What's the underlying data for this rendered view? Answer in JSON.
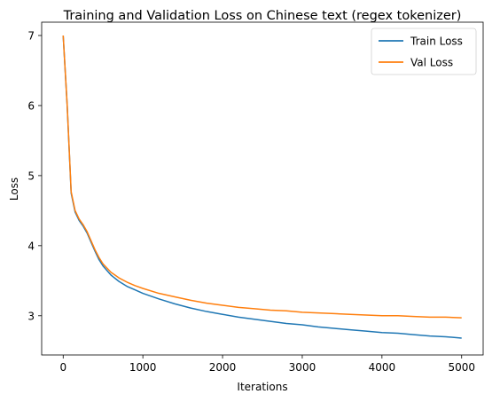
{
  "chart_data": {
    "type": "line",
    "title": "Training and Validation Loss on Chinese text (regex tokenizer)",
    "xlabel": "Iterations",
    "ylabel": "Loss",
    "xlim": [
      -270,
      5270
    ],
    "ylim": [
      2.44,
      7.19
    ],
    "xticks": [
      0,
      1000,
      2000,
      3000,
      4000,
      5000
    ],
    "yticks": [
      3,
      4,
      5,
      6,
      7
    ],
    "grid": false,
    "legend_position": "top-right",
    "colors": {
      "train": "#1f77b4",
      "val": "#ff7f0e"
    },
    "x": [
      0,
      50,
      100,
      150,
      200,
      250,
      300,
      350,
      400,
      450,
      500,
      600,
      700,
      800,
      900,
      1000,
      1200,
      1400,
      1600,
      1800,
      2000,
      2200,
      2400,
      2600,
      2800,
      3000,
      3200,
      3400,
      3600,
      3800,
      4000,
      4200,
      4400,
      4600,
      4800,
      5000
    ],
    "series": [
      {
        "name": "Train Loss",
        "values": [
          7.0,
          6.0,
          4.75,
          4.48,
          4.36,
          4.28,
          4.18,
          4.05,
          3.92,
          3.8,
          3.71,
          3.58,
          3.49,
          3.42,
          3.37,
          3.32,
          3.24,
          3.17,
          3.11,
          3.06,
          3.02,
          2.98,
          2.95,
          2.92,
          2.89,
          2.87,
          2.84,
          2.82,
          2.8,
          2.78,
          2.76,
          2.75,
          2.73,
          2.71,
          2.7,
          2.68
        ]
      },
      {
        "name": "Val Loss",
        "values": [
          7.0,
          6.01,
          4.77,
          4.5,
          4.38,
          4.3,
          4.2,
          4.07,
          3.94,
          3.83,
          3.74,
          3.62,
          3.54,
          3.48,
          3.43,
          3.39,
          3.32,
          3.27,
          3.22,
          3.18,
          3.15,
          3.12,
          3.1,
          3.08,
          3.07,
          3.05,
          3.04,
          3.03,
          3.02,
          3.01,
          3.0,
          3.0,
          2.99,
          2.98,
          2.98,
          2.97
        ]
      }
    ]
  }
}
